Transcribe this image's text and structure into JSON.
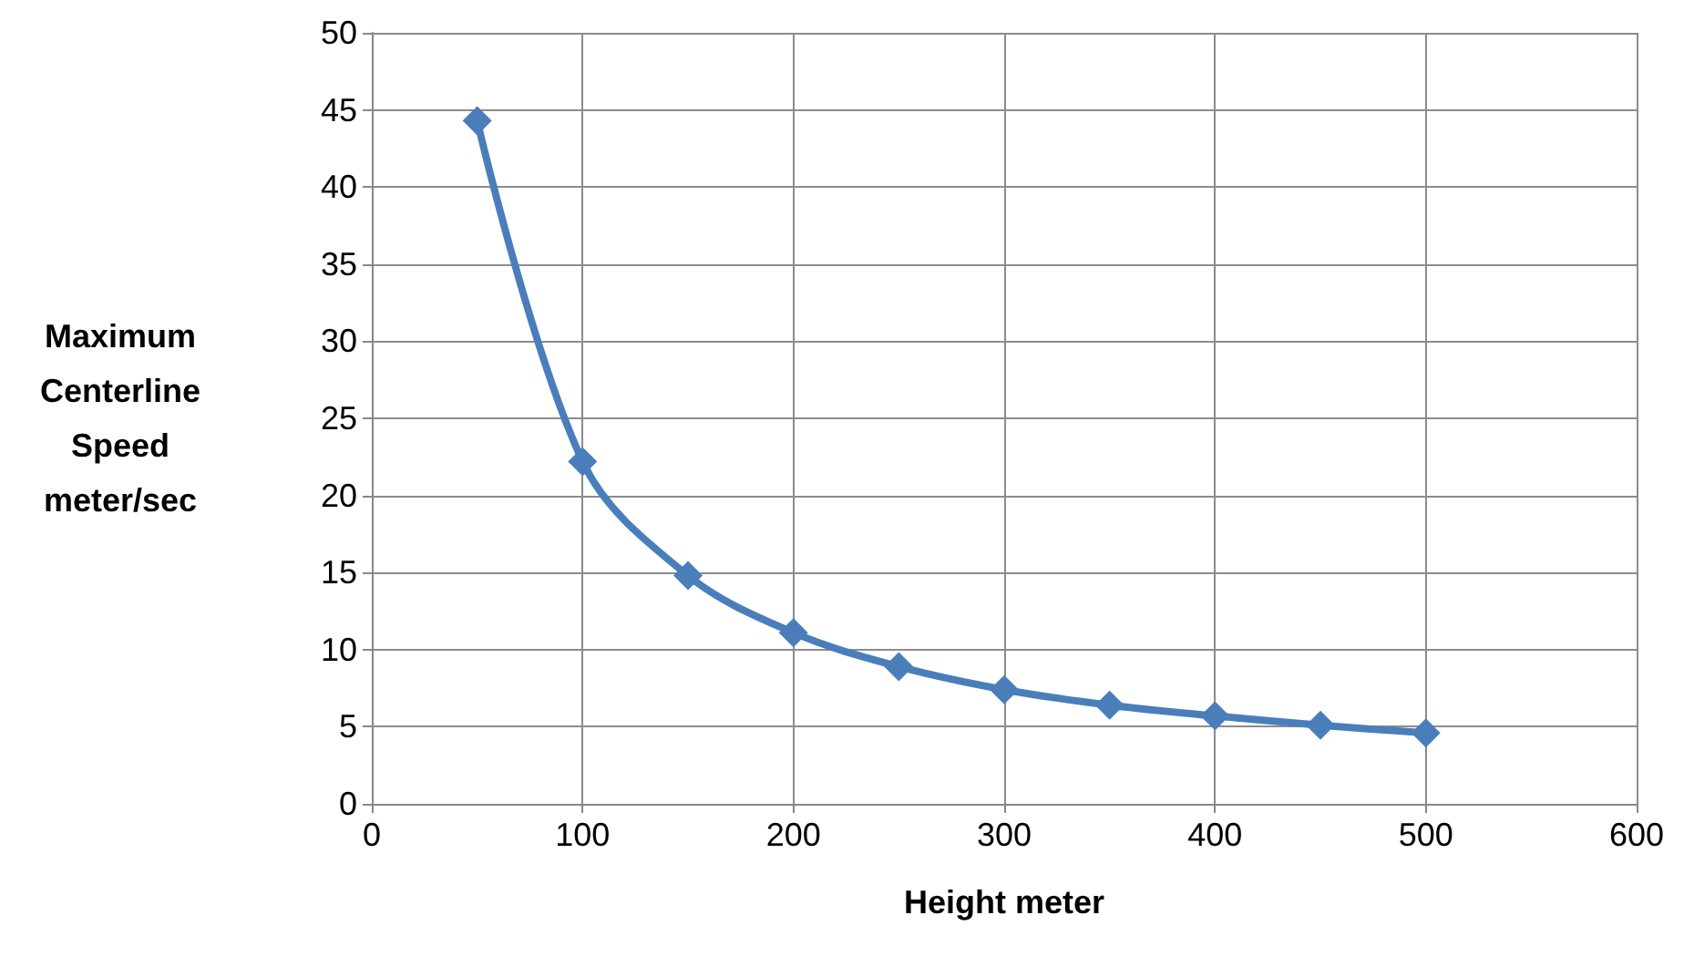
{
  "chart_data": {
    "type": "line",
    "xlabel": "Height meter",
    "ylabel": "Maximum Centerline Speed meter/sec",
    "x": [
      50,
      100,
      150,
      200,
      250,
      300,
      350,
      400,
      450,
      500
    ],
    "series": [
      {
        "color": "#4a7ebb",
        "values": [
          44.3,
          22.2,
          14.8,
          11.1,
          8.9,
          7.4,
          6.4,
          5.7,
          5.1,
          4.6
        ]
      }
    ],
    "xlim": [
      0,
      600
    ],
    "xticks": [
      0,
      100,
      200,
      300,
      400,
      500,
      600
    ],
    "ylim": [
      0,
      50
    ],
    "yticks": [
      0,
      5,
      10,
      15,
      20,
      25,
      30,
      35,
      40,
      45,
      50
    ],
    "grid": true,
    "marker": "diamond",
    "line_style": "solid"
  }
}
